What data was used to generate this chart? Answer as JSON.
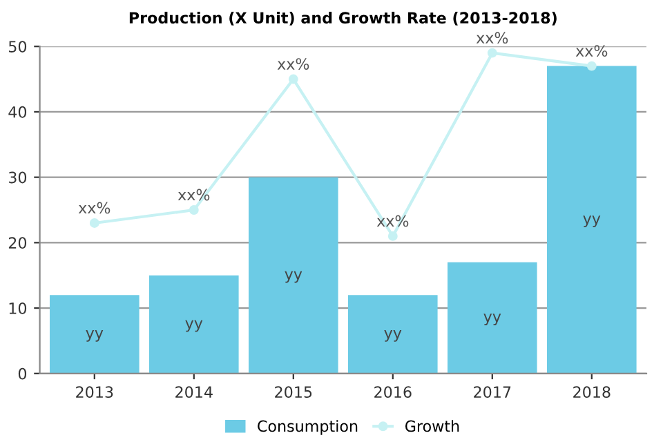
{
  "chart_data": {
    "type": "bar",
    "title": "Production (X Unit) and Growth Rate (2013-2018)",
    "categories": [
      "2013",
      "2014",
      "2015",
      "2016",
      "2017",
      "2018"
    ],
    "series": [
      {
        "name": "Consumption",
        "color": "#6ccbe5",
        "values": [
          12,
          15,
          30,
          12,
          17,
          47
        ],
        "value_labels": [
          "yy",
          "yy",
          "yy",
          "yy",
          "yy",
          "yy"
        ]
      },
      {
        "name": "Growth",
        "type": "line",
        "color": "#c6f1f3",
        "values": [
          23,
          25,
          45,
          21,
          49,
          47
        ],
        "value_labels": [
          "xx%",
          "xx%",
          "xx%",
          "xx%",
          "xx%",
          "xx%"
        ]
      }
    ],
    "ylim": [
      0,
      50
    ],
    "yticks": [
      0,
      10,
      20,
      30,
      40,
      50
    ],
    "grid": "y",
    "legend": "bottom",
    "marker": "circle",
    "line_style": "solid"
  }
}
